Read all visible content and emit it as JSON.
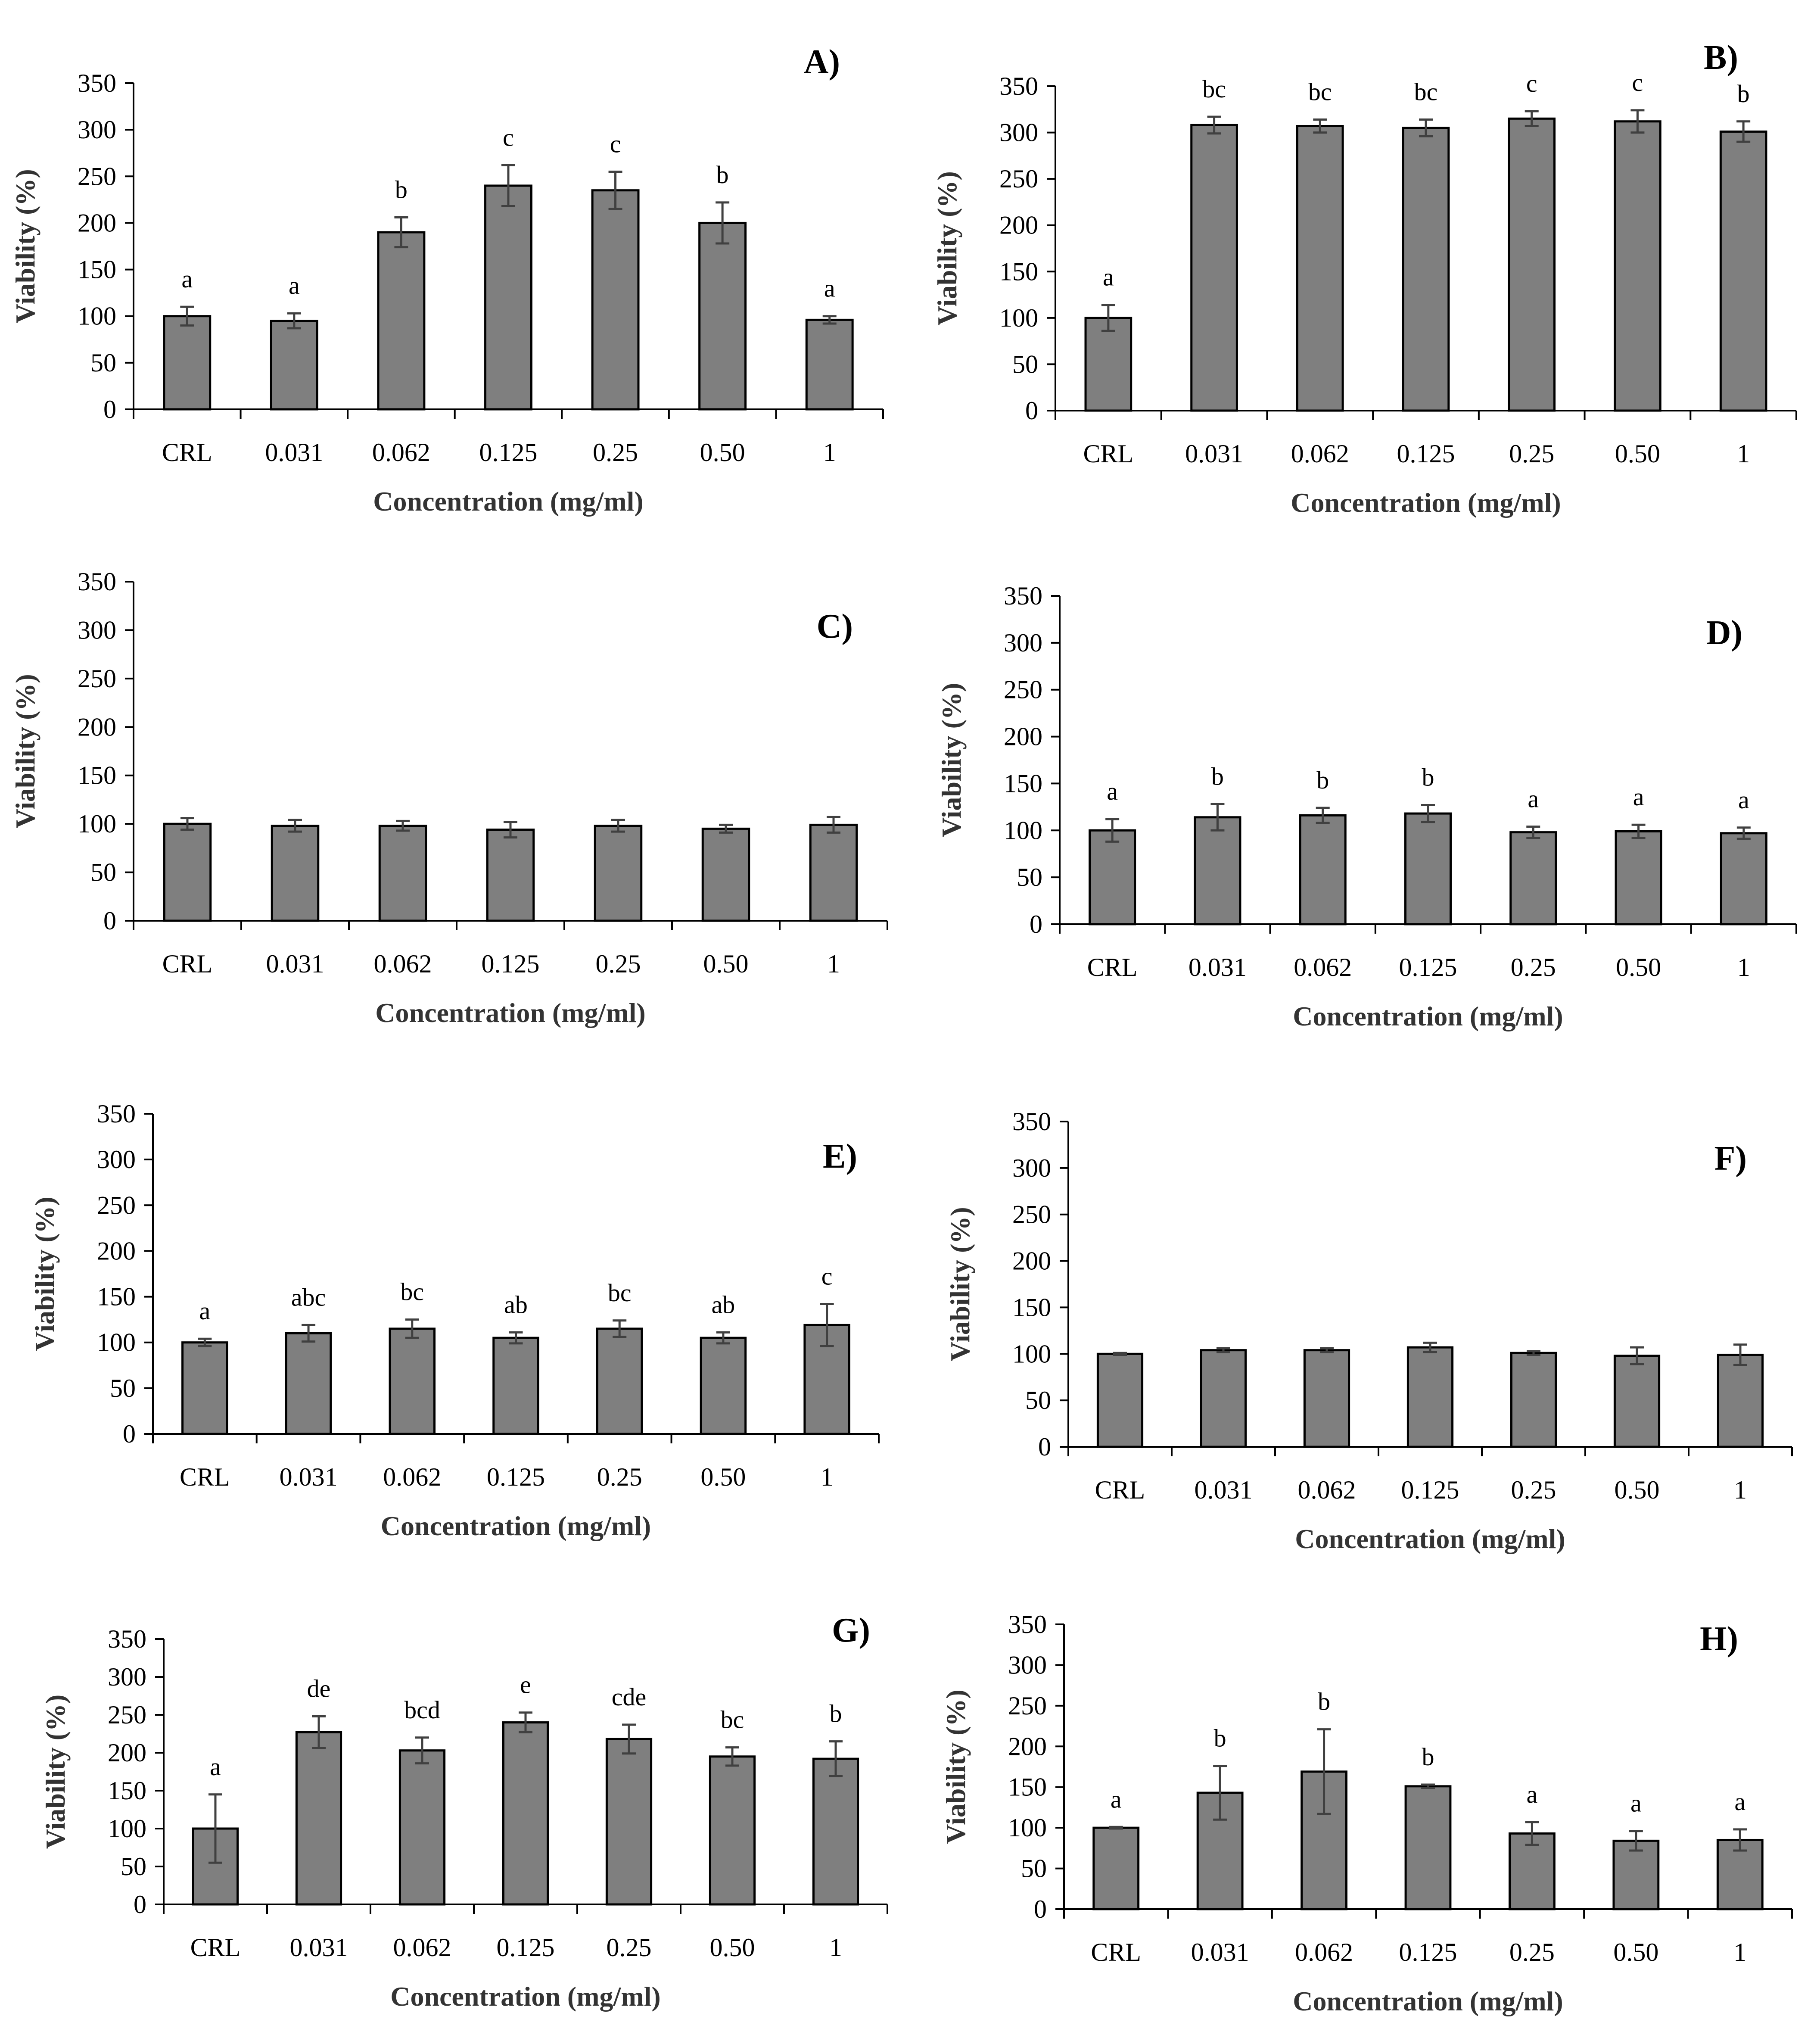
{
  "bar_color": "#7f7f7f",
  "chart_data": [
    {
      "panel": "A)",
      "type": "bar",
      "categories": [
        "CRL",
        "0.031",
        "0.062",
        "0.125",
        "0.25",
        "0.50",
        "1"
      ],
      "values": [
        100,
        95,
        190,
        240,
        235,
        200,
        96
      ],
      "errors": [
        10,
        8,
        16,
        22,
        20,
        22,
        4
      ],
      "significance": [
        "a",
        "a",
        "b",
        "c",
        "c",
        "b",
        "a"
      ],
      "xlabel": "Concentration (mg/ml)",
      "ylabel": "Viability (%)",
      "ylim": [
        0,
        350
      ],
      "yticks": [
        0,
        50,
        100,
        150,
        200,
        250,
        300,
        350
      ]
    },
    {
      "panel": "B)",
      "type": "bar",
      "categories": [
        "CRL",
        "0.031",
        "0.062",
        "0.125",
        "0.25",
        "0.50",
        "1"
      ],
      "values": [
        100,
        308,
        307,
        305,
        315,
        312,
        301
      ],
      "errors": [
        14,
        9,
        7,
        9,
        8,
        12,
        11
      ],
      "significance": [
        "a",
        "bc",
        "bc",
        "bc",
        "c",
        "c",
        "b"
      ],
      "xlabel": "Concentration (mg/ml)",
      "ylabel": "Viability (%)",
      "ylim": [
        0,
        350
      ],
      "yticks": [
        0,
        50,
        100,
        150,
        200,
        250,
        300,
        350
      ]
    },
    {
      "panel": "C)",
      "type": "bar",
      "categories": [
        "CRL",
        "0.031",
        "0.062",
        "0.125",
        "0.25",
        "0.50",
        "1"
      ],
      "values": [
        100,
        98,
        98,
        94,
        98,
        95,
        99
      ],
      "errors": [
        6,
        6,
        5,
        8,
        6,
        4,
        8
      ],
      "significance": [
        "",
        "",
        "",
        "",
        "",
        "",
        ""
      ],
      "xlabel": "Concentration (mg/ml)",
      "ylabel": "Viability (%)",
      "ylim": [
        0,
        350
      ],
      "yticks": [
        0,
        50,
        100,
        150,
        200,
        250,
        300,
        350
      ]
    },
    {
      "panel": "D)",
      "type": "bar",
      "categories": [
        "CRL",
        "0.031",
        "0.062",
        "0.125",
        "0.25",
        "0.50",
        "1"
      ],
      "values": [
        100,
        114,
        116,
        118,
        98,
        99,
        97
      ],
      "errors": [
        12,
        14,
        8,
        9,
        6,
        7,
        6
      ],
      "significance": [
        "a",
        "b",
        "b",
        "b",
        "a",
        "a",
        "a"
      ],
      "xlabel": "Concentration (mg/ml)",
      "ylabel": "Viability (%)",
      "ylim": [
        0,
        350
      ],
      "yticks": [
        0,
        50,
        100,
        150,
        200,
        250,
        300,
        350
      ]
    },
    {
      "panel": "E)",
      "type": "bar",
      "categories": [
        "CRL",
        "0.031",
        "0.062",
        "0.125",
        "0.25",
        "0.50",
        "1"
      ],
      "values": [
        100,
        110,
        115,
        105,
        115,
        105,
        119
      ],
      "errors": [
        4,
        9,
        10,
        6,
        9,
        6,
        23
      ],
      "significance": [
        "a",
        "abc",
        "bc",
        "ab",
        "bc",
        "ab",
        "c"
      ],
      "xlabel": "Concentration (mg/ml)",
      "ylabel": "Viability (%)",
      "ylim": [
        0,
        350
      ],
      "yticks": [
        0,
        50,
        100,
        150,
        200,
        250,
        300,
        350
      ]
    },
    {
      "panel": "F)",
      "type": "bar",
      "categories": [
        "CRL",
        "0.031",
        "0.062",
        "0.125",
        "0.25",
        "0.50",
        "1"
      ],
      "values": [
        100,
        104,
        104,
        107,
        101,
        98,
        99
      ],
      "errors": [
        1,
        2,
        2,
        5,
        2,
        9,
        11
      ],
      "significance": [
        "",
        "",
        "",
        "",
        "",
        "",
        ""
      ],
      "xlabel": "Concentration (mg/ml)",
      "ylabel": "Viability (%)",
      "ylim": [
        0,
        350
      ],
      "yticks": [
        0,
        50,
        100,
        150,
        200,
        250,
        300,
        350
      ]
    },
    {
      "panel": "G)",
      "type": "bar",
      "categories": [
        "CRL",
        "0.031",
        "0.062",
        "0.125",
        "0.25",
        "0.50",
        "1"
      ],
      "values": [
        100,
        227,
        203,
        240,
        218,
        195,
        192
      ],
      "errors": [
        45,
        21,
        17,
        13,
        19,
        12,
        23
      ],
      "significance": [
        "a",
        "de",
        "bcd",
        "e",
        "cde",
        "bc",
        "b"
      ],
      "xlabel": "Concentration (mg/ml)",
      "ylabel": "Viability (%)",
      "ylim": [
        0,
        350
      ],
      "yticks": [
        0,
        50,
        100,
        150,
        200,
        250,
        300,
        350
      ]
    },
    {
      "panel": "H)",
      "type": "bar",
      "categories": [
        "CRL",
        "0.031",
        "0.062",
        "0.125",
        "0.25",
        "0.50",
        "1"
      ],
      "values": [
        100,
        143,
        169,
        151,
        93,
        84,
        85
      ],
      "errors": [
        1,
        33,
        52,
        2,
        14,
        12,
        13
      ],
      "significance": [
        "a",
        "b",
        "b",
        "b",
        "a",
        "a",
        "a"
      ],
      "xlabel": "Concentration (mg/ml)",
      "ylabel": "Viability (%)",
      "ylim": [
        0,
        350
      ],
      "yticks": [
        0,
        50,
        100,
        150,
        200,
        250,
        300,
        350
      ]
    }
  ]
}
